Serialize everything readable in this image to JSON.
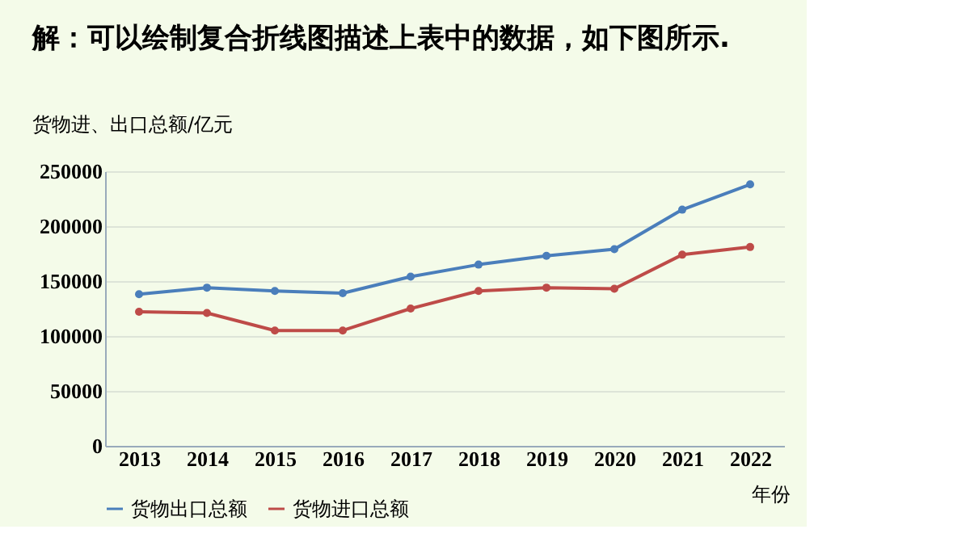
{
  "chart_data": {
    "type": "line",
    "title": "解：可以绘制复合折线图描述上表中的数据，如下图所示.",
    "ylabel": "货物进、出口总额/亿元",
    "xlabel": "年份",
    "categories": [
      "2013",
      "2014",
      "2015",
      "2016",
      "2017",
      "2018",
      "2019",
      "2020",
      "2021",
      "2022"
    ],
    "series": [
      {
        "name": "货物出口总额",
        "color": "#4a7ebb",
        "values": [
          138000,
          144000,
          141000,
          139000,
          154000,
          165000,
          173000,
          179000,
          215000,
          238000
        ]
      },
      {
        "name": "货物进口总额",
        "color": "#be4b48",
        "values": [
          122000,
          121000,
          105000,
          105000,
          125000,
          141000,
          144000,
          143000,
          174000,
          181000
        ]
      }
    ],
    "ylim": [
      0,
      250000
    ],
    "yticks": [
      0,
      50000,
      100000,
      150000,
      200000,
      250000
    ],
    "grid": "y",
    "legend": "bottom",
    "marker": "circle",
    "line_style": "solid"
  }
}
